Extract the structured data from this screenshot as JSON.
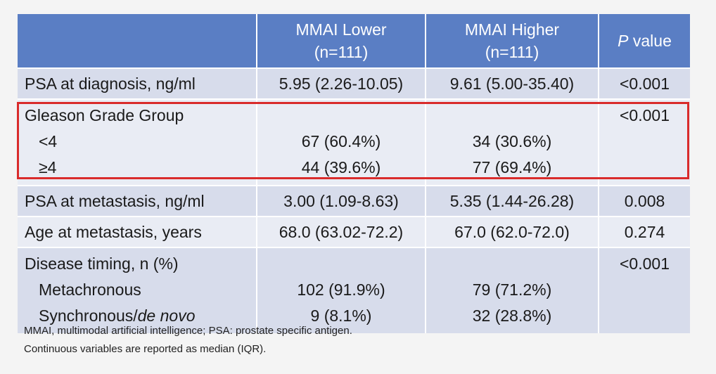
{
  "table": {
    "headers": [
      {
        "line1": "",
        "line2": ""
      },
      {
        "line1": "MMAI Lower",
        "line2": "(n=111)"
      },
      {
        "line1": "MMAI Higher",
        "line2": "(n=111)"
      },
      {
        "italic": "P",
        "rest": " value"
      }
    ],
    "rows": {
      "psa_diag": {
        "label": "PSA at diagnosis, ng/ml",
        "lower": "5.95 (2.26-10.05)",
        "higher": "9.61 (5.00-35.40)",
        "p": "<0.001"
      },
      "gleason": {
        "label": "Gleason Grade Group",
        "p": "<0.001",
        "sub1": {
          "label": "<4",
          "lower": "67 (60.4%)",
          "higher": "34 (30.6%)"
        },
        "sub2": {
          "label": "≥4",
          "lower": "44 (39.6%)",
          "higher": "77 (69.4%)"
        }
      },
      "psa_met": {
        "label": "PSA at metastasis, ng/ml",
        "lower": "3.00 (1.09-8.63)",
        "higher": "5.35 (1.44-26.28)",
        "p": "0.008"
      },
      "age_met": {
        "label": "Age at metastasis, years",
        "lower": "68.0 (63.02-72.2)",
        "higher": "67.0 (62.0-72.0)",
        "p": "0.274"
      },
      "timing": {
        "label": "Disease timing, n (%)",
        "p": "<0.001",
        "sub1": {
          "label": "Metachronous",
          "lower": "102 (91.9%)",
          "higher": "79 (71.2%)"
        },
        "sub2": {
          "label_plain": "Synchronous/",
          "label_italic": "de novo",
          "lower": "9 (8.1%)",
          "higher": "32 (28.8%)"
        }
      }
    }
  },
  "footnotes": {
    "line1": "MMAI, multimodal artificial intelligence; PSA: prostate specific antigen.",
    "line2": "Continuous variables are reported as median (IQR)."
  },
  "colors": {
    "header": "#5a7ec4",
    "row_dark": "#d7dceb",
    "row_light": "#e9ecf4",
    "highlight": "#d92b2b"
  }
}
